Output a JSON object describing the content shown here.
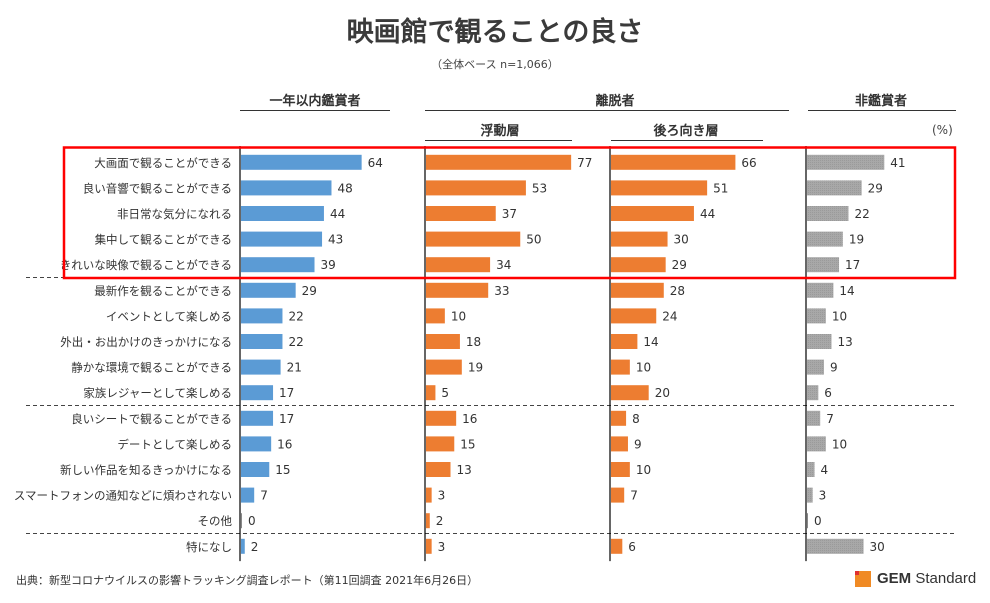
{
  "header": {
    "title": "映画館で観ることの良さ",
    "subtitle": "（全体ベース n=1,066）"
  },
  "groups": {
    "annual": "一年以内鑑賞者",
    "lapsed": "離脱者",
    "floating": "浮動層",
    "backward": "後ろ向き層",
    "non": "非鑑賞者",
    "unit": "(%)"
  },
  "footer": {
    "source": "出典：新型コロナウイルスの影響トラッキング調査レポート（第11回調査 2021年6月26日）",
    "logo_bold": "GEM",
    "logo_regular": "Standard"
  },
  "chart_data": {
    "type": "bar",
    "orientation": "horizontal",
    "title": "映画館で観ることの良さ",
    "subtitle": "（全体ベース n=1,066）",
    "unit": "%",
    "categories": [
      "大画面で観ることができる",
      "良い音響で観ることができる",
      "非日常な気分になれる",
      "集中して観ることができる",
      "きれいな映像で観ることができる",
      "最新作を観ることができる",
      "イベントとして楽しめる",
      "外出・お出かけのきっかけになる",
      "静かな環境で観ることができる",
      "家族レジャーとして楽しめる",
      "良いシートで観ることができる",
      "デートとして楽しめる",
      "新しい作品を知るきっかけになる",
      "スマートフォンの通知などに煩わされない",
      "その他",
      "特になし"
    ],
    "series": [
      {
        "name": "一年以内鑑賞者",
        "parent_group": "",
        "color": "#5b9bd5",
        "values": [
          64,
          48,
          44,
          43,
          39,
          29,
          22,
          22,
          21,
          17,
          17,
          16,
          15,
          7,
          0,
          2
        ]
      },
      {
        "name": "浮動層",
        "parent_group": "離脱者",
        "color": "#ed7d31",
        "values": [
          77,
          53,
          37,
          50,
          34,
          33,
          10,
          18,
          19,
          5,
          16,
          15,
          13,
          3,
          2,
          3
        ]
      },
      {
        "name": "後ろ向き層",
        "parent_group": "離脱者",
        "color": "#ed7d31",
        "values": [
          66,
          51,
          44,
          30,
          29,
          28,
          24,
          14,
          10,
          20,
          8,
          9,
          10,
          7,
          null,
          6
        ]
      },
      {
        "name": "非鑑賞者",
        "parent_group": "",
        "color": "#a5a5a5",
        "values": [
          41,
          29,
          22,
          19,
          17,
          14,
          10,
          13,
          9,
          6,
          7,
          10,
          4,
          3,
          0,
          30
        ]
      }
    ],
    "xlim": [
      0,
      100
    ],
    "group_separators_after_index": [
      4,
      9,
      14
    ],
    "highlighted_categories_range": [
      0,
      4
    ],
    "highlight_color": "#ff0000",
    "grid": false,
    "legend": "none"
  }
}
